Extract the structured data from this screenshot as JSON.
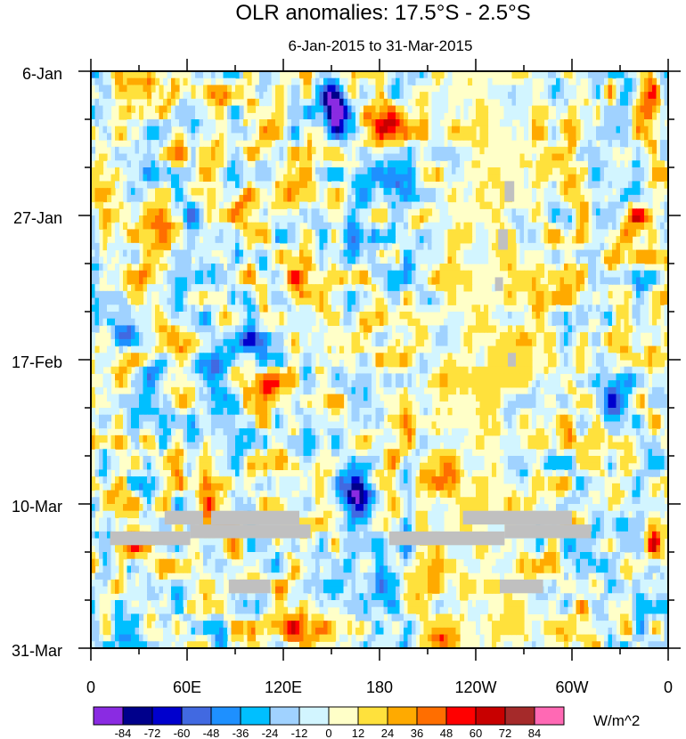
{
  "chart_data": {
    "type": "heatmap",
    "title": "OLR anomalies: 17.5°S - 2.5°S",
    "subtitle": "6-Jan-2015 to 31-Mar-2015",
    "x_ticks": [
      "0",
      "60E",
      "120E",
      "180",
      "120W",
      "60W",
      "0"
    ],
    "x_range": [
      0,
      360
    ],
    "y_ticks": [
      "6-Jan",
      "27-Jan",
      "17-Feb",
      "10-Mar",
      "31-Mar"
    ],
    "y_range": [
      "6-Jan-2015",
      "31-Mar-2015"
    ],
    "colorbar": {
      "unit": "W/m^2",
      "levels": [
        "-84",
        "-72",
        "-60",
        "-48",
        "-36",
        "-24",
        "-12",
        "0",
        "12",
        "24",
        "36",
        "48",
        "60",
        "72",
        "84"
      ],
      "colors": [
        "#8a2be2",
        "#00008b",
        "#0000cd",
        "#4169e1",
        "#1e90ff",
        "#00bfff",
        "#a0d2ff",
        "#d2f5ff",
        "#ffffc8",
        "#ffe13c",
        "#ffaa00",
        "#ff6e00",
        "#ff0000",
        "#c80000",
        "#a52a2a",
        "#ff69b4"
      ]
    },
    "missing_color": "#c0c0c0",
    "features": [
      {
        "lon": 168,
        "day": 62,
        "value": -70
      },
      {
        "lon": 162,
        "day": 60,
        "value": -55
      },
      {
        "lon": 150,
        "day": 5,
        "value": -60
      },
      {
        "lon": 158,
        "day": 7,
        "value": -45
      },
      {
        "lon": 165,
        "day": 24,
        "value": -42
      },
      {
        "lon": 172,
        "day": 18,
        "value": -35
      },
      {
        "lon": 178,
        "day": 28,
        "value": -30
      },
      {
        "lon": 190,
        "day": 16,
        "value": -30
      },
      {
        "lon": 60,
        "day": 6,
        "value": -45
      },
      {
        "lon": 65,
        "day": 20,
        "value": -40
      },
      {
        "lon": 75,
        "day": 44,
        "value": -50
      },
      {
        "lon": 40,
        "day": 44,
        "value": -35
      },
      {
        "lon": 20,
        "day": 36,
        "value": -35
      },
      {
        "lon": 100,
        "day": 40,
        "value": -35
      },
      {
        "lon": 185,
        "day": 75,
        "value": -45
      },
      {
        "lon": 195,
        "day": 70,
        "value": -30
      },
      {
        "lon": 318,
        "day": 35,
        "value": -35
      },
      {
        "lon": 325,
        "day": 48,
        "value": -45
      },
      {
        "lon": 330,
        "day": 70,
        "value": -30
      },
      {
        "lon": 305,
        "day": 58,
        "value": -28
      },
      {
        "lon": 25,
        "day": 80,
        "value": -30
      },
      {
        "lon": 80,
        "day": 82,
        "value": -30
      },
      {
        "lon": 130,
        "day": 30,
        "value": 50
      },
      {
        "lon": 125,
        "day": 80,
        "value": 45
      },
      {
        "lon": 148,
        "day": 84,
        "value": 40
      },
      {
        "lon": 185,
        "day": 8,
        "value": 42
      },
      {
        "lon": 345,
        "day": 5,
        "value": 45
      },
      {
        "lon": 340,
        "day": 22,
        "value": 55
      },
      {
        "lon": 325,
        "day": 28,
        "value": 35
      },
      {
        "lon": 60,
        "day": 12,
        "value": 32
      },
      {
        "lon": 95,
        "day": 20,
        "value": 35
      },
      {
        "lon": 115,
        "day": 46,
        "value": 30
      },
      {
        "lon": 80,
        "day": 62,
        "value": 38
      },
      {
        "lon": 25,
        "day": 68,
        "value": 45
      },
      {
        "lon": 220,
        "day": 58,
        "value": 25
      },
      {
        "lon": 220,
        "day": 82,
        "value": 28
      },
      {
        "lon": 350,
        "day": 68,
        "value": 32
      },
      {
        "lon": 5,
        "day": 14,
        "value": 28
      },
      {
        "lon": 40,
        "day": 26,
        "value": 28
      }
    ],
    "missing_regions": [
      {
        "lon": [
          46,
          70
        ],
        "day": [
          64,
          66
        ]
      },
      {
        "lon": [
          75,
          130
        ],
        "day": [
          64,
          66
        ]
      },
      {
        "lon": [
          12,
          62
        ],
        "day": [
          67,
          69
        ]
      },
      {
        "lon": [
          62,
          137
        ],
        "day": [
          66,
          68
        ]
      },
      {
        "lon": [
          186,
          258
        ],
        "day": [
          67,
          69
        ]
      },
      {
        "lon": [
          232,
          300
        ],
        "day": [
          64,
          66
        ]
      },
      {
        "lon": [
          258,
          312
        ],
        "day": [
          66,
          68
        ]
      },
      {
        "lon": [
          86,
          112
        ],
        "day": [
          74,
          76
        ]
      },
      {
        "lon": [
          255,
          282
        ],
        "day": [
          74,
          76
        ]
      },
      {
        "lon": [
          258,
          264
        ],
        "day": [
          16,
          19
        ]
      },
      {
        "lon": [
          254,
          260
        ],
        "day": [
          23,
          26
        ]
      },
      {
        "lon": [
          252,
          257
        ],
        "day": [
          30,
          32
        ]
      },
      {
        "lon": [
          260,
          265
        ],
        "day": [
          41,
          43
        ]
      }
    ]
  }
}
